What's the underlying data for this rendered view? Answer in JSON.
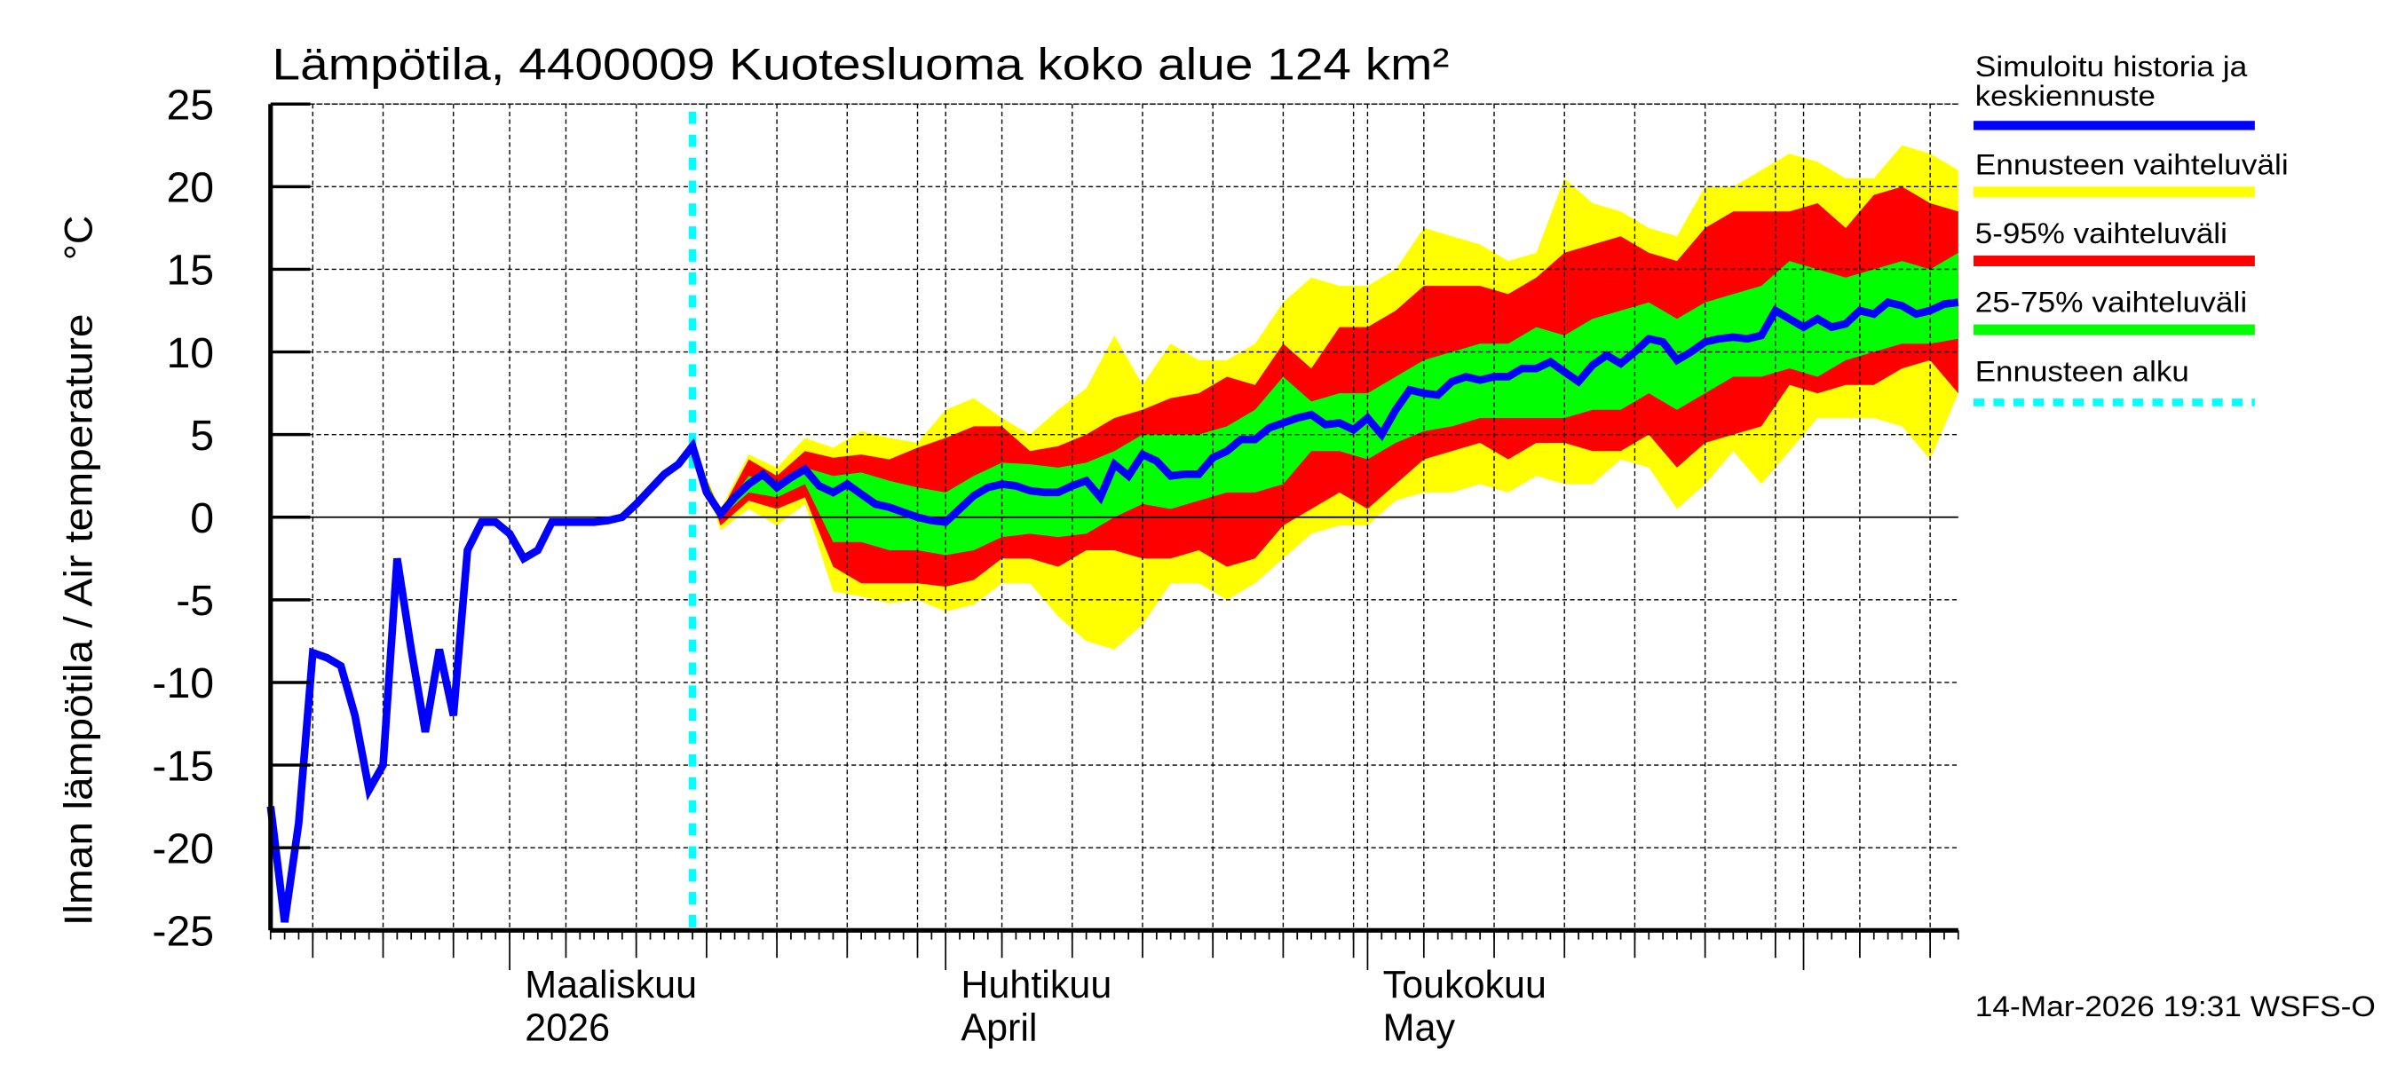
{
  "chart_data": {
    "type": "area",
    "title": "Lämpötila, 4400009 Kuotesluoma koko alue 124 km²",
    "ylabel": "Ilman lämpötila / Air temperature",
    "yunit": "°C",
    "ylim": [
      -25,
      25
    ],
    "yticks": [
      "-25",
      "-20",
      "-15",
      "-10",
      "-5",
      "0",
      "5",
      "10",
      "15",
      "20",
      "25"
    ],
    "xlim": [
      "2026-02-12",
      "2026-06-12"
    ],
    "xtick_labels": [
      {
        "date": "2026-03-01",
        "line1": "Maaliskuu",
        "line2": "2026"
      },
      {
        "date": "2026-04-01",
        "line1": "Huhtikuu",
        "line2": "April"
      },
      {
        "date": "2026-05-01",
        "line1": "Toukokuu",
        "line2": "May"
      }
    ],
    "grid": true,
    "forecast_start": "2026-03-14",
    "colors": {
      "mean": "#0000ff",
      "range": "#ffff00",
      "p5_95": "#ff0000",
      "p25_75": "#00ff00",
      "forecast_start": "#00ffff"
    },
    "mean": {
      "start": "2026-02-12",
      "values": [
        -17.5,
        -24.5,
        -18.5,
        -8.2,
        -8.5,
        -9,
        -12,
        -16.5,
        -15,
        -2.5,
        -8,
        -13,
        -8,
        -12,
        -2,
        -0.3,
        -0.3,
        -1,
        -2.5,
        -2,
        -0.3,
        -0.3,
        -0.3,
        -0.3,
        -0.2,
        0,
        0.8,
        1.7,
        2.6,
        3.2,
        4.3,
        1.5,
        0.2,
        1.2,
        2.0,
        2.6,
        1.8,
        2.4,
        2.9,
        1.9,
        1.5,
        2.0,
        1.4,
        0.8,
        0.6,
        0.3,
        0.0,
        -0.2,
        -0.3,
        0.5,
        1.3,
        1.8,
        2.0,
        1.9,
        1.6,
        1.5,
        1.5,
        1.9,
        2.2,
        1.2,
        3.2,
        2.5,
        3.8,
        3.4,
        2.5,
        2.6,
        2.6,
        3.6,
        4.0,
        4.7,
        4.7,
        5.4,
        5.7,
        6.0,
        6.2,
        5.6,
        5.7,
        5.3,
        6.0,
        5.0,
        6.5,
        7.7,
        7.5,
        7.4,
        8.2,
        8.5,
        8.3,
        8.5,
        8.5,
        9.0,
        9.0,
        9.4,
        8.8,
        8.2,
        9.2,
        9.8,
        9.3,
        10.0,
        10.8,
        10.6,
        9.5,
        10.0,
        10.6,
        10.8,
        10.9,
        10.8,
        11.0,
        12.5,
        12.0,
        11.5,
        12.0,
        11.5,
        11.7,
        12.5,
        12.3,
        13.0,
        12.8,
        12.3,
        12.5,
        12.9,
        13.0
      ]
    },
    "bands": {
      "dates": [
        "2026-03-14",
        "2026-03-16",
        "2026-03-18",
        "2026-03-20",
        "2026-03-22",
        "2026-03-24",
        "2026-03-26",
        "2026-03-28",
        "2026-03-30",
        "2026-04-01",
        "2026-04-03",
        "2026-04-05",
        "2026-04-07",
        "2026-04-09",
        "2026-04-11",
        "2026-04-13",
        "2026-04-15",
        "2026-04-17",
        "2026-04-19",
        "2026-04-21",
        "2026-04-23",
        "2026-04-25",
        "2026-04-27",
        "2026-04-29",
        "2026-05-01",
        "2026-05-03",
        "2026-05-05",
        "2026-05-07",
        "2026-05-09",
        "2026-05-11",
        "2026-05-13",
        "2026-05-15",
        "2026-05-17",
        "2026-05-19",
        "2026-05-21",
        "2026-05-23",
        "2026-05-25",
        "2026-05-27",
        "2026-05-29",
        "2026-05-31",
        "2026-06-02",
        "2026-06-04",
        "2026-06-06",
        "2026-06-08",
        "2026-06-10",
        "2026-06-12"
      ],
      "max": [
        4.3,
        0.5,
        3.8,
        3,
        4.8,
        4.2,
        5.2,
        4.8,
        4.5,
        6.5,
        7.2,
        6,
        5,
        6.5,
        7.8,
        11,
        8,
        10.5,
        9.5,
        9.5,
        10.5,
        13,
        14.5,
        14,
        14,
        15,
        17.5,
        17,
        16.5,
        15.5,
        16,
        20.5,
        19,
        18.5,
        17.5,
        17,
        20,
        20,
        21,
        22,
        21.5,
        20.5,
        20.5,
        22.5,
        22,
        21
      ],
      "p95": [
        4.3,
        0.3,
        3.5,
        2.5,
        4,
        3.6,
        3.8,
        3.5,
        4.2,
        4.8,
        5.5,
        5.5,
        4,
        4.3,
        5,
        6,
        6.5,
        7.2,
        7.5,
        8.5,
        8,
        10.5,
        9,
        11.5,
        11.5,
        12.5,
        14,
        14,
        14,
        13.5,
        14.5,
        16,
        16.5,
        17,
        16,
        15.5,
        17.5,
        18.5,
        18.5,
        18.5,
        19,
        17.5,
        19.5,
        20,
        19,
        18.5
      ],
      "p75": [
        4.3,
        0.2,
        2.5,
        2,
        3,
        2.5,
        2.7,
        2.2,
        1.8,
        1.5,
        2.5,
        3.3,
        3.2,
        3,
        3.3,
        4,
        5,
        5,
        5,
        5.5,
        6.5,
        8.5,
        7,
        7.5,
        7.5,
        8.5,
        9.5,
        10,
        10.5,
        10.5,
        11.5,
        11,
        12,
        12.5,
        13,
        12,
        13,
        13.5,
        14,
        15.5,
        15,
        14.5,
        15,
        15.5,
        15,
        16
      ],
      "p25": [
        4.3,
        0,
        1.5,
        1.2,
        2,
        -1.5,
        -1.5,
        -2,
        -2,
        -2.3,
        -2,
        -1.2,
        -1,
        -1.2,
        -1,
        0,
        0.8,
        0.5,
        1,
        1.5,
        1.5,
        2,
        4,
        4,
        3.5,
        4.5,
        5.2,
        5.5,
        6,
        6,
        6,
        6,
        6.5,
        6.5,
        7.5,
        6.5,
        7.5,
        8.5,
        8.5,
        9,
        8.5,
        9.5,
        10,
        10.5,
        10.5,
        10.8
      ],
      "p5": [
        4.3,
        -0.5,
        1,
        0.5,
        1.2,
        -3,
        -4,
        -4,
        -4,
        -4.2,
        -3.8,
        -2.5,
        -2.5,
        -3,
        -2,
        -2,
        -2.5,
        -2.5,
        -2,
        -3,
        -2.5,
        -0.5,
        0.5,
        1.5,
        0.5,
        2,
        3.5,
        4,
        4.5,
        3.5,
        4.5,
        4.5,
        4,
        4,
        5,
        3,
        4.5,
        5,
        5.5,
        8,
        7.5,
        8,
        8,
        9,
        9.5,
        7.5
      ],
      "min": [
        4.3,
        -0.8,
        0.5,
        -0.5,
        0.8,
        -4.5,
        -4.8,
        -5.2,
        -5,
        -5.7,
        -5.3,
        -4,
        -4,
        -6,
        -7.5,
        -8,
        -6.5,
        -4,
        -4,
        -5,
        -4,
        -2.5,
        -1,
        -0.5,
        -0.5,
        1,
        1.5,
        1.5,
        2,
        1.5,
        2.5,
        2,
        2,
        3.5,
        3,
        0.5,
        2,
        4,
        2,
        4,
        6,
        6,
        6,
        5.5,
        3.5,
        7.5
      ]
    }
  },
  "legend": {
    "mean_line1": "Simuloitu historia ja",
    "mean_line2": "keskiennuste",
    "range": "Ennusteen vaihteluväli",
    "p5_95": "5-95% vaihteluväli",
    "p25_75": "25-75% vaihteluväli",
    "forecast_start": "Ennusteen alku"
  },
  "footer": "14-Mar-2026 19:31 WSFS-O"
}
